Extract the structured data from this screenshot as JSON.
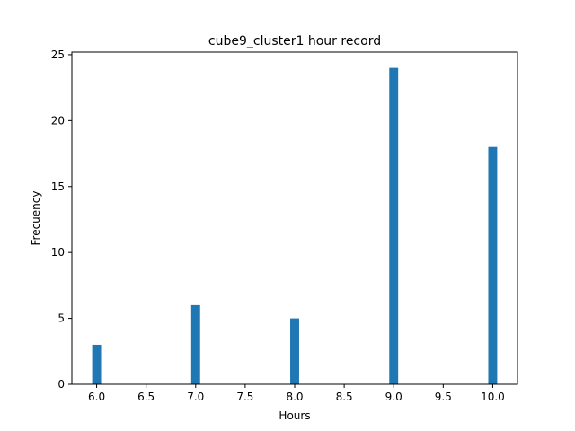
{
  "chart_data": {
    "type": "bar",
    "title": "cube9_cluster1 hour record",
    "xlabel": "Hours",
    "ylabel": "Frecuency",
    "x": [
      6.0,
      7.0,
      8.0,
      9.0,
      10.0
    ],
    "values": [
      3,
      6,
      5,
      24,
      18
    ],
    "xlim": [
      5.75,
      10.25
    ],
    "ylim": [
      0,
      25.2
    ],
    "xticks": [
      "6.0",
      "6.5",
      "7.0",
      "7.5",
      "8.0",
      "8.5",
      "9.0",
      "9.5",
      "10.0"
    ],
    "xtick_values": [
      6.0,
      6.5,
      7.0,
      7.5,
      8.0,
      8.5,
      9.0,
      9.5,
      10.0
    ],
    "yticks": [
      "0",
      "5",
      "10",
      "15",
      "20",
      "25"
    ],
    "ytick_values": [
      0,
      5,
      10,
      15,
      20,
      25
    ],
    "bar_width": 0.09,
    "bar_color": "#1f77b4",
    "grid": false,
    "legend": false
  }
}
